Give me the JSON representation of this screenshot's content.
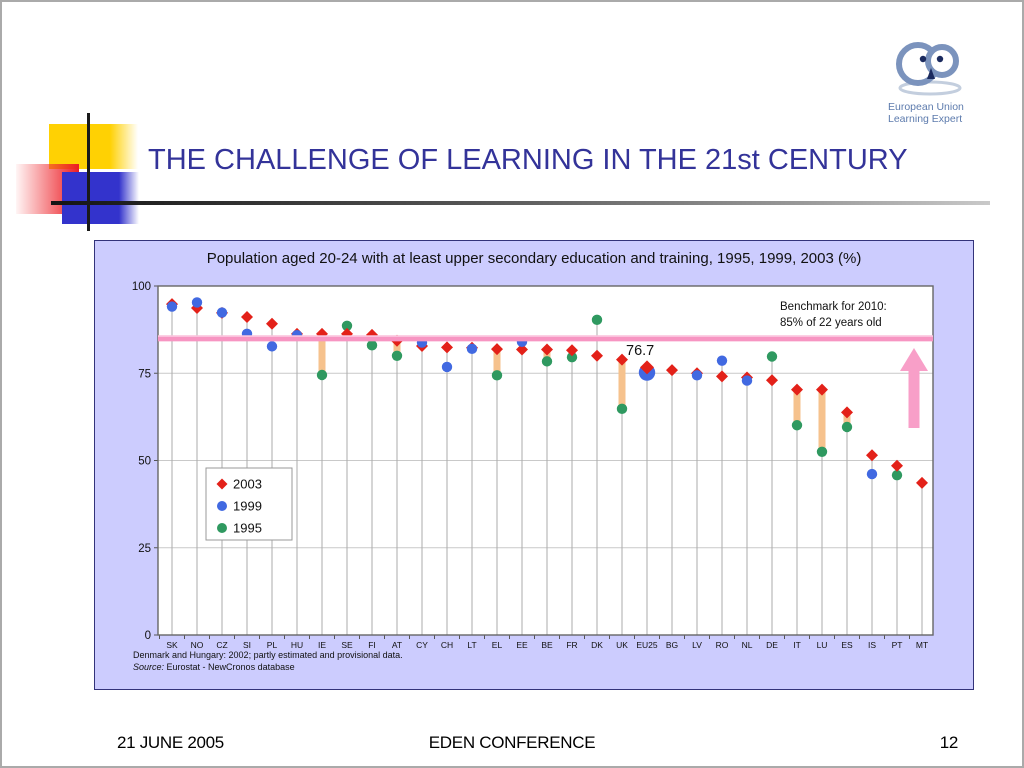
{
  "slide": {
    "title": "THE CHALLENGE OF LEARNING IN THE 21st CENTURY",
    "logo": {
      "line1": "European Union",
      "line2": "Learning  Expert"
    },
    "footer": {
      "date": "21 JUNE 2005",
      "conference": "EDEN CONFERENCE",
      "page_number": "12"
    }
  },
  "chart_data": {
    "type": "scatter",
    "title": "Population aged 20-24 with at least upper secondary education and training, 1995, 1999, 2003 (%)",
    "ylim": [
      0,
      100
    ],
    "yticks": [
      0,
      25,
      50,
      75,
      100
    ],
    "gridlines": [
      25,
      50,
      75
    ],
    "legend_position": "inside-left",
    "categories": [
      "SK",
      "NO",
      "CZ",
      "SI",
      "PL",
      "HU",
      "IE",
      "SE",
      "FI",
      "AT",
      "CY",
      "CH",
      "LT",
      "EL",
      "EE",
      "BE",
      "FR",
      "DK",
      "UK",
      "EU25",
      "BG",
      "LV",
      "RO",
      "NL",
      "DE",
      "IT",
      "LU",
      "ES",
      "IS",
      "PT",
      "MT"
    ],
    "series": [
      {
        "name": "2003",
        "marker": "diamond",
        "color": "#e32119",
        "values": [
          94.8,
          93.7,
          92.3,
          91.1,
          89.2,
          86.3,
          86.3,
          86.3,
          86.0,
          84.3,
          82.8,
          82.4,
          82.3,
          81.9,
          81.8,
          81.8,
          81.6,
          80.0,
          78.9,
          76.7,
          75.9,
          75.0,
          74.1,
          73.8,
          73.0,
          70.3,
          70.3,
          63.8,
          51.5,
          48.5,
          43.6
        ]
      },
      {
        "name": "1999",
        "marker": "circle",
        "color": "#4169e1",
        "values": [
          94.1,
          95.3,
          92.4,
          86.3,
          82.7,
          85.9,
          null,
          null,
          null,
          null,
          83.8,
          76.8,
          82.0,
          null,
          84.0,
          null,
          null,
          null,
          null,
          75.2,
          null,
          74.4,
          78.6,
          72.9,
          null,
          null,
          null,
          null,
          46.1,
          null,
          null
        ]
      },
      {
        "name": "1995",
        "marker": "circle",
        "color": "#2f9960",
        "values": [
          null,
          null,
          null,
          null,
          null,
          null,
          74.5,
          88.6,
          83.0,
          80.0,
          null,
          null,
          null,
          74.4,
          null,
          78.4,
          79.6,
          90.3,
          64.8,
          null,
          null,
          null,
          null,
          null,
          79.8,
          60.1,
          52.5,
          59.6,
          null,
          45.8,
          null
        ]
      }
    ],
    "emphasized_category": "EU25",
    "annotation": {
      "category": "EU25",
      "text": "76.7"
    },
    "benchmark": {
      "value": 85,
      "label_line1": "Benchmark for 2010:",
      "label_line2": "85% of 22 years old",
      "color": "#f795c2",
      "arrow_color": "#f89fc8"
    },
    "range_bars": [
      {
        "category": "IE",
        "from": 74.5,
        "to": 86.3
      },
      {
        "category": "AT",
        "from": 80.0,
        "to": 84.3
      },
      {
        "category": "EL",
        "from": 74.4,
        "to": 81.9
      },
      {
        "category": "BE",
        "from": 78.4,
        "to": 81.8
      },
      {
        "category": "UK",
        "from": 64.8,
        "to": 78.9
      },
      {
        "category": "IT",
        "from": 60.1,
        "to": 70.3
      },
      {
        "category": "LU",
        "from": 52.5,
        "to": 70.3
      },
      {
        "category": "ES",
        "from": 59.6,
        "to": 63.8
      }
    ],
    "range_bar_color": "#f6c28d",
    "panel_bg": "#ccccfe",
    "footnote": "Denmark and Hungary: 2002; partly estimated and provisional data.",
    "source_label": "Source:",
    "source_text": " Eurostat - NewCronos database"
  }
}
